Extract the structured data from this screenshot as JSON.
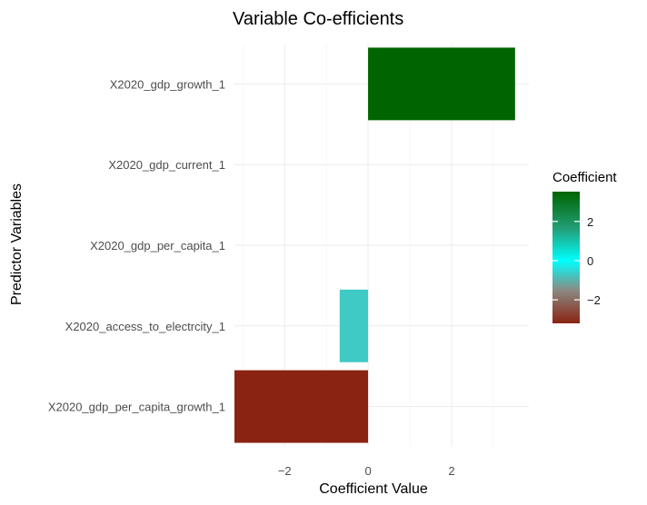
{
  "chart_data": {
    "type": "bar",
    "orientation": "horizontal",
    "title": "Variable Co-efficients",
    "xlabel": "Coefficient Value",
    "ylabel": "Predictor Variables",
    "categories": [
      "X2020_gdp_per_capita_growth_1",
      "X2020_access_to_electrcity_1",
      "X2020_gdp_per_capita_1",
      "X2020_gdp_current_1",
      "X2020_gdp_growth_1"
    ],
    "values": [
      -3.2,
      -0.68,
      0.0,
      0.0,
      3.52
    ],
    "xlim": [
      -3.2,
      3.85
    ],
    "xticks": [
      -2,
      0,
      2
    ],
    "grid": true,
    "legend": {
      "title": "Coefficient",
      "placement": "right",
      "ticks": [
        2,
        0,
        -2
      ],
      "range": [
        -3.2,
        3.52
      ],
      "gradient": [
        {
          "value": -3.2,
          "color": "#8b2312"
        },
        {
          "value": -1.5,
          "color": "#8a8a82"
        },
        {
          "value": 0,
          "color": "#00ffff"
        },
        {
          "value": 1.6,
          "color": "#22a07a"
        },
        {
          "value": 3.52,
          "color": "#006400"
        }
      ]
    }
  }
}
